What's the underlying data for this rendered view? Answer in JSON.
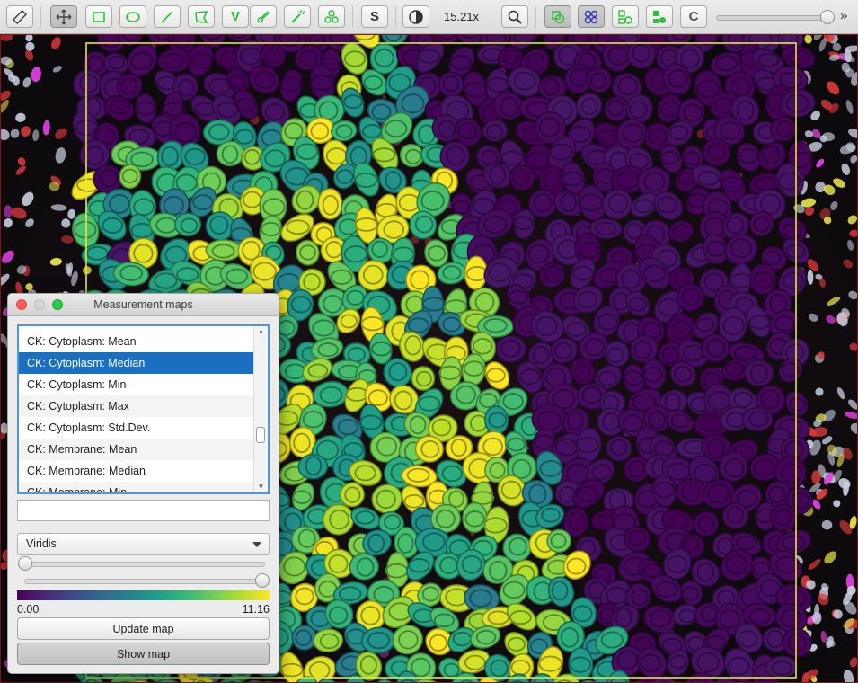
{
  "toolbar": {
    "zoom_text": "15.21x",
    "s_label": "S",
    "c_label": "C",
    "v_label": "V",
    "more_label": "»",
    "icons": [
      "measure-icon",
      "move-icon",
      "rectangle-icon",
      "ellipse-icon",
      "line-icon",
      "polygon-icon",
      "polyline-icon",
      "brush-icon",
      "wand-icon",
      "points-icon",
      "contrast-icon",
      "zoom-icon",
      "annotations-icon",
      "detections-icon",
      "fill-icon",
      "cells-icon"
    ],
    "accent_green": "#2fbf3a"
  },
  "dialog": {
    "title": "Measurement maps",
    "list": {
      "items": [
        "CK: Cytoplasm: Mean",
        "CK: Cytoplasm: Median",
        "CK: Cytoplasm: Min",
        "CK: Cytoplasm: Max",
        "CK: Cytoplasm: Std.Dev.",
        "CK: Membrane: Mean",
        "CK: Membrane: Median",
        "CK: Membrane: Min"
      ],
      "selected_index": 1
    },
    "filter_value": "",
    "colormap": "Viridis",
    "colormap_colors": [
      "#440154",
      "#482878",
      "#3e4989",
      "#31688e",
      "#26828e",
      "#1f9e89",
      "#35b779",
      "#6ece58",
      "#b5de2b",
      "#fde725"
    ],
    "min_value": "0.00",
    "max_value": "11.16",
    "update_label": "Update map",
    "show_label": "Show map"
  }
}
